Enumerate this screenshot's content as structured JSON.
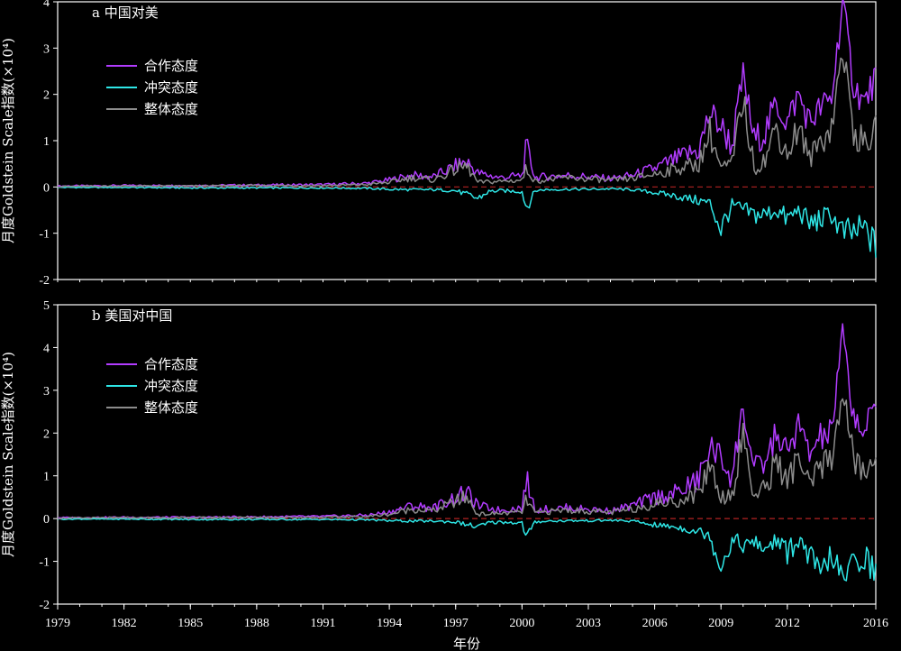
{
  "chart_data": [
    {
      "type": "line",
      "panel_label": "a 中国对美",
      "ylabel": "月度Goldstein Scale指数(×10⁴)",
      "xlabel": "",
      "xlim": [
        1979,
        2016
      ],
      "ylim": [
        -2,
        4
      ],
      "yticks": [
        "-2",
        "-1",
        "0",
        "1",
        "2",
        "3",
        "4"
      ],
      "xticks": [],
      "legend_position": "upper-left",
      "zero_line_color": "#b22222",
      "series": [
        {
          "name": "合作态度",
          "color": "#b23cff",
          "x": [
            1979,
            1982,
            1985,
            1988,
            1991,
            1993,
            1994,
            1995,
            1996,
            1997,
            1997.5,
            1998,
            1999,
            2000,
            2000.2,
            2000.6,
            2001,
            2002,
            2003,
            2004,
            2005,
            2006,
            2007,
            2008,
            2008.5,
            2009,
            2009.5,
            2010,
            2010.5,
            2011,
            2011.5,
            2012,
            2012.5,
            2013,
            2013.5,
            2014,
            2014.5,
            2015,
            2015.5,
            2016
          ],
          "values": [
            0.02,
            0.03,
            0.03,
            0.04,
            0.05,
            0.08,
            0.15,
            0.25,
            0.22,
            0.45,
            0.55,
            0.3,
            0.2,
            0.25,
            0.85,
            0.2,
            0.22,
            0.25,
            0.22,
            0.18,
            0.25,
            0.4,
            0.6,
            0.8,
            1.6,
            1.3,
            0.9,
            2.4,
            1.0,
            1.2,
            1.8,
            1.4,
            2.0,
            1.4,
            1.7,
            1.9,
            4.0,
            2.2,
            1.8,
            2.4
          ]
        },
        {
          "name": "冲突态度",
          "color": "#2ee6e6",
          "x": [
            1979,
            1982,
            1985,
            1988,
            1991,
            1993,
            1994,
            1995,
            1996,
            1997,
            1998,
            1998.5,
            1999,
            2000,
            2000.2,
            2000.6,
            2001,
            2002,
            2003,
            2004,
            2005,
            2006,
            2007,
            2008,
            2008.5,
            2009,
            2009.5,
            2010,
            2010.5,
            2011,
            2011.5,
            2012,
            2012.5,
            2013,
            2013.5,
            2014,
            2014.5,
            2015,
            2015.5,
            2016
          ],
          "values": [
            -0.01,
            -0.01,
            -0.02,
            -0.02,
            -0.02,
            -0.03,
            -0.05,
            -0.06,
            -0.06,
            -0.08,
            -0.25,
            -0.1,
            -0.08,
            -0.1,
            -0.45,
            -0.08,
            -0.06,
            -0.05,
            -0.05,
            -0.04,
            -0.06,
            -0.12,
            -0.2,
            -0.3,
            -0.35,
            -0.9,
            -0.4,
            -0.5,
            -0.6,
            -0.6,
            -0.5,
            -0.7,
            -0.5,
            -0.8,
            -0.7,
            -0.6,
            -1.0,
            -1.0,
            -0.9,
            -1.3
          ]
        },
        {
          "name": "整体态度",
          "color": "#8c8c8c",
          "x": [
            1979,
            1982,
            1985,
            1988,
            1991,
            1993,
            1994,
            1995,
            1996,
            1997,
            1997.5,
            1998,
            1999,
            2000,
            2000.2,
            2000.6,
            2001,
            2002,
            2003,
            2004,
            2005,
            2006,
            2007,
            2008,
            2008.5,
            2009,
            2009.5,
            2010,
            2010.5,
            2011,
            2011.5,
            2012,
            2012.5,
            2013,
            2013.5,
            2014,
            2014.5,
            2015,
            2015.5,
            2016
          ],
          "values": [
            0.01,
            0.02,
            0.02,
            0.03,
            0.03,
            0.05,
            0.1,
            0.2,
            0.15,
            0.38,
            0.45,
            0.1,
            0.12,
            0.15,
            0.4,
            0.12,
            0.15,
            0.2,
            0.17,
            0.14,
            0.18,
            0.28,
            0.4,
            0.5,
            1.2,
            0.4,
            0.5,
            1.9,
            0.4,
            0.6,
            1.3,
            0.7,
            1.3,
            0.6,
            1.0,
            1.3,
            3.0,
            1.2,
            0.9,
            1.2
          ]
        }
      ]
    },
    {
      "type": "line",
      "panel_label": "b 美国对中国",
      "ylabel": "月度Goldstein Scale指数(×10⁴)",
      "xlabel": "年份",
      "xlim": [
        1979,
        2016
      ],
      "ylim": [
        -2,
        5
      ],
      "yticks": [
        "-2",
        "-1",
        "0",
        "1",
        "2",
        "3",
        "4",
        "5"
      ],
      "xticks": [
        "1979",
        "1982",
        "1985",
        "1988",
        "1991",
        "1994",
        "1997",
        "2000",
        "2003",
        "2006",
        "2009",
        "2012",
        "2016"
      ],
      "legend_position": "upper-left",
      "zero_line_color": "#b22222",
      "series": [
        {
          "name": "合作态度",
          "color": "#b23cff",
          "x": [
            1979,
            1982,
            1985,
            1988,
            1991,
            1993,
            1994,
            1995,
            1996,
            1997,
            1997.5,
            1998,
            1999,
            2000,
            2000.2,
            2000.6,
            2001,
            2002,
            2003,
            2004,
            2005,
            2006,
            2007,
            2008,
            2008.5,
            2009,
            2009.5,
            2010,
            2010.5,
            2011,
            2011.5,
            2012,
            2012.5,
            2013,
            2013.5,
            2014,
            2014.5,
            2015,
            2015.5,
            2016
          ],
          "values": [
            0.02,
            0.03,
            0.03,
            0.04,
            0.05,
            0.08,
            0.15,
            0.3,
            0.25,
            0.5,
            0.6,
            0.3,
            0.2,
            0.25,
            0.9,
            0.2,
            0.22,
            0.25,
            0.22,
            0.18,
            0.3,
            0.5,
            0.6,
            0.9,
            1.7,
            1.4,
            1.0,
            2.6,
            1.1,
            1.3,
            2.0,
            1.5,
            2.2,
            1.5,
            1.9,
            2.0,
            4.3,
            2.4,
            2.0,
            2.7
          ]
        },
        {
          "name": "冲突态度",
          "color": "#2ee6e6",
          "x": [
            1979,
            1982,
            1985,
            1988,
            1991,
            1993,
            1994,
            1995,
            1996,
            1997,
            1998,
            1998.5,
            1999,
            2000,
            2000.2,
            2000.6,
            2001,
            2002,
            2003,
            2004,
            2005,
            2006,
            2007,
            2008,
            2008.5,
            2009,
            2009.5,
            2010,
            2010.5,
            2011,
            2011.5,
            2012,
            2012.5,
            2013,
            2013.5,
            2014,
            2014.5,
            2015,
            2015.5,
            2016
          ],
          "values": [
            -0.01,
            -0.01,
            -0.02,
            -0.02,
            -0.02,
            -0.03,
            -0.05,
            -0.06,
            -0.06,
            -0.08,
            -0.2,
            -0.1,
            -0.08,
            -0.1,
            -0.45,
            -0.08,
            -0.06,
            -0.05,
            -0.05,
            -0.04,
            -0.06,
            -0.15,
            -0.2,
            -0.3,
            -0.4,
            -1.1,
            -0.5,
            -0.6,
            -0.6,
            -0.7,
            -0.5,
            -0.8,
            -0.5,
            -0.9,
            -1.35,
            -0.8,
            -1.5,
            -1.0,
            -0.9,
            -1.25
          ]
        },
        {
          "name": "整体态度",
          "color": "#8c8c8c",
          "x": [
            1979,
            1982,
            1985,
            1988,
            1991,
            1993,
            1994,
            1995,
            1996,
            1997,
            1997.5,
            1998,
            1999,
            2000,
            2000.2,
            2000.6,
            2001,
            2002,
            2003,
            2004,
            2005,
            2006,
            2007,
            2008,
            2008.5,
            2009,
            2009.5,
            2010,
            2010.5,
            2011,
            2011.5,
            2012,
            2012.5,
            2013,
            2013.5,
            2014,
            2014.5,
            2015,
            2015.5,
            2016
          ],
          "values": [
            0.01,
            0.02,
            0.02,
            0.03,
            0.03,
            0.05,
            0.1,
            0.22,
            0.18,
            0.4,
            0.5,
            0.1,
            0.12,
            0.15,
            0.45,
            0.12,
            0.15,
            0.2,
            0.17,
            0.14,
            0.22,
            0.35,
            0.4,
            0.6,
            1.3,
            0.5,
            0.6,
            2.0,
            0.5,
            0.7,
            1.4,
            0.8,
            1.5,
            0.7,
            1.2,
            1.4,
            3.0,
            1.4,
            1.0,
            1.4
          ]
        }
      ]
    }
  ]
}
